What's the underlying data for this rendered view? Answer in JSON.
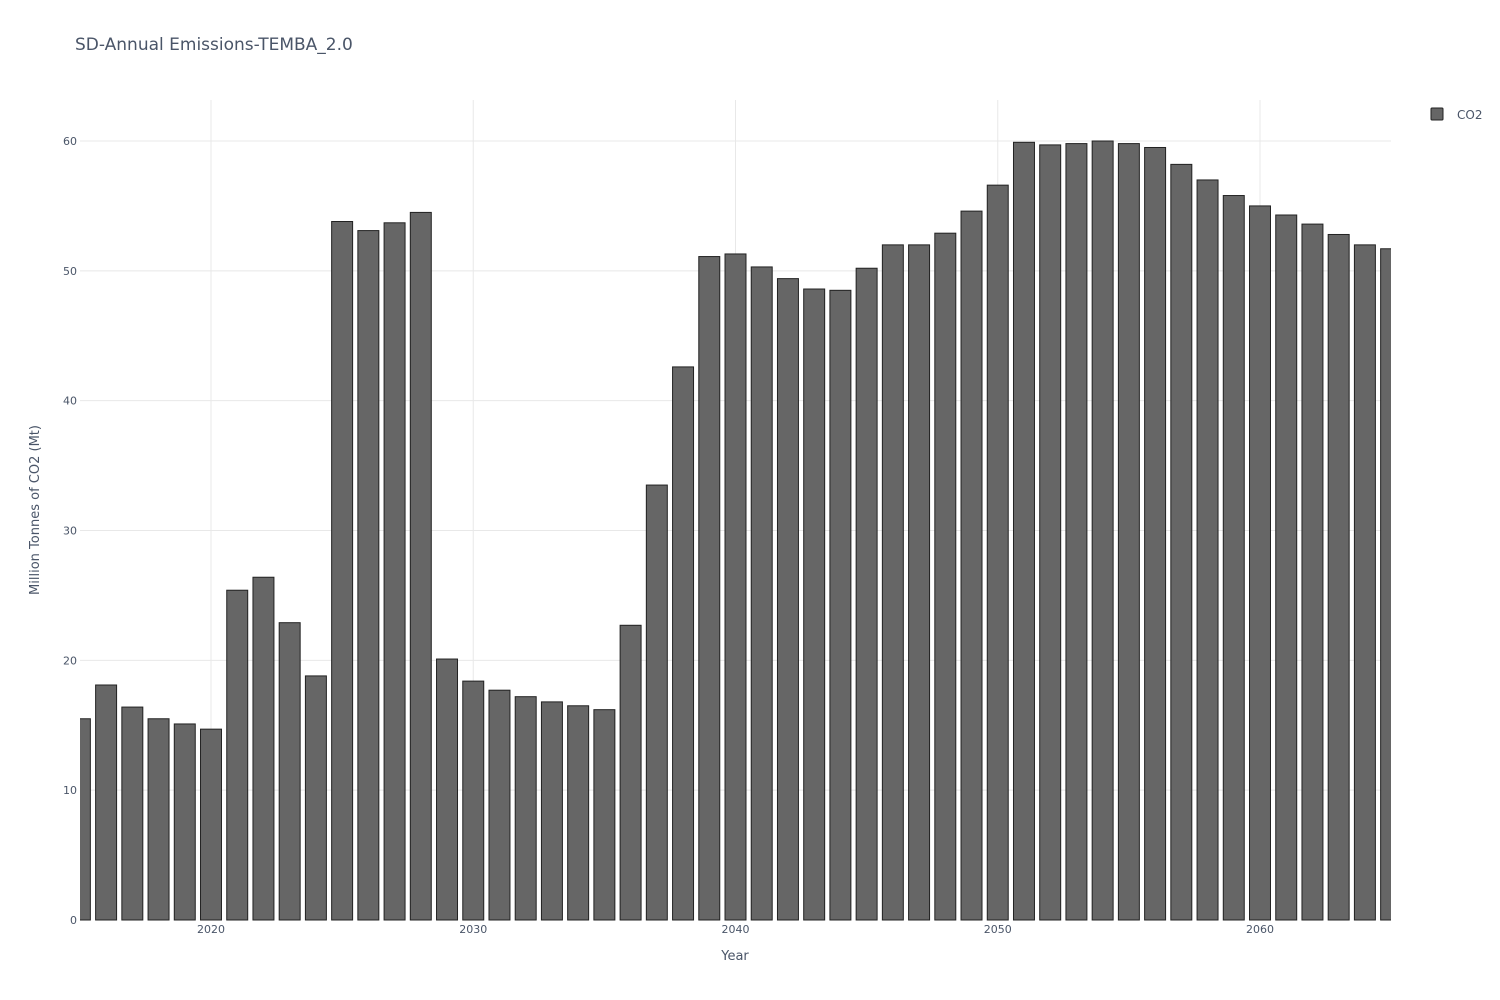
{
  "chart_data": {
    "type": "bar",
    "title": "SD-Annual Emissions-TEMBA_2.0",
    "xlabel": "Year",
    "ylabel": "Million Tonnes of CO2  (Mt)",
    "xlim": [
      2015,
      2065
    ],
    "ylim": [
      0,
      63
    ],
    "x_ticks": [
      2020,
      2030,
      2040,
      2050,
      2060
    ],
    "y_ticks": [
      0,
      10,
      20,
      30,
      40,
      50,
      60
    ],
    "grid": true,
    "legend_position": "top-right",
    "bar_color": "#666666",
    "bar_edge_color": "#222222",
    "series": [
      {
        "name": "CO2",
        "x": [
          2015,
          2016,
          2017,
          2018,
          2019,
          2020,
          2021,
          2022,
          2023,
          2024,
          2025,
          2026,
          2027,
          2028,
          2029,
          2030,
          2031,
          2032,
          2033,
          2034,
          2035,
          2036,
          2037,
          2038,
          2039,
          2040,
          2041,
          2042,
          2043,
          2044,
          2045,
          2046,
          2047,
          2048,
          2049,
          2050,
          2051,
          2052,
          2053,
          2054,
          2055,
          2056,
          2057,
          2058,
          2059,
          2060,
          2061,
          2062,
          2063,
          2064,
          2065
        ],
        "values": [
          15.5,
          18.1,
          16.4,
          15.5,
          15.1,
          14.7,
          25.4,
          26.4,
          22.9,
          18.8,
          53.8,
          53.1,
          53.7,
          54.5,
          20.1,
          18.4,
          17.7,
          17.2,
          16.8,
          16.5,
          16.2,
          22.7,
          33.5,
          42.6,
          51.1,
          51.3,
          50.3,
          49.4,
          48.6,
          48.5,
          50.2,
          52.0,
          52.0,
          52.9,
          54.6,
          56.6,
          59.9,
          59.7,
          59.8,
          60.0,
          59.8,
          59.5,
          58.2,
          57.0,
          55.8,
          55.0,
          54.3,
          53.6,
          52.8,
          52.0,
          51.7
        ]
      }
    ]
  }
}
